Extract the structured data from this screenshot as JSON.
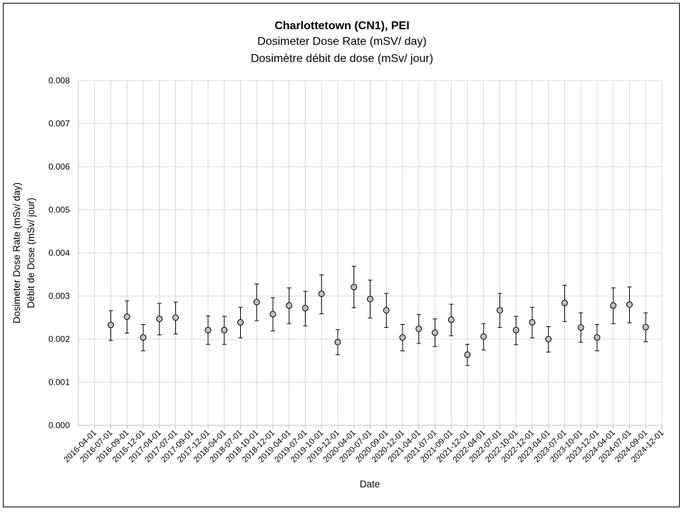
{
  "chart_data": {
    "type": "scatter",
    "title": "Charlottetown (CN1), PEI",
    "subtitle": [
      "Dosimeter Dose Rate (mSV/ day)",
      "Dosimètre débit de dose (mSv/ jour)"
    ],
    "xlabel": "Date",
    "ylabel": [
      "Dosimeter Dose Rate (mSv/ day)",
      "Débit de Dose (mSv/ jour)"
    ],
    "ylim": [
      0,
      0.008
    ],
    "yticks": [
      "0.000",
      "0.001",
      "0.002",
      "0.003",
      "0.004",
      "0.005",
      "0.006",
      "0.007",
      "0.008"
    ],
    "grid": true,
    "x_categories": [
      "2016-04-01",
      "2016-07-01",
      "2016-09-01",
      "2016-12-01",
      "2017-04-01",
      "2017-07-01",
      "2017-09-01",
      "2017-12-01",
      "2018-04-01",
      "2018-07-01",
      "2018-10-01",
      "2018-12-01",
      "2019-04-01",
      "2019-07-01",
      "2019-10-01",
      "2019-12-01",
      "2020-04-01",
      "2020-07-01",
      "2020-09-01",
      "2020-12-01",
      "2021-04-01",
      "2021-07-01",
      "2021-09-01",
      "2021-12-01",
      "2022-04-01",
      "2022-07-01",
      "2022-10-01",
      "2022-12-01",
      "2023-04-01",
      "2023-07-01",
      "2023-10-01",
      "2023-12-01",
      "2024-04-01",
      "2024-07-01",
      "2024-09-01",
      "2024-12-01"
    ],
    "points": [
      {
        "x": "2016-07-01",
        "y": 0.00233,
        "low": 0.00197,
        "high": 0.00266
      },
      {
        "x": "2016-09-01",
        "y": 0.00252,
        "low": 0.00214,
        "high": 0.00289
      },
      {
        "x": "2016-12-01",
        "y": 0.00204,
        "low": 0.00173,
        "high": 0.00234
      },
      {
        "x": "2017-04-01",
        "y": 0.00247,
        "low": 0.0021,
        "high": 0.00283
      },
      {
        "x": "2017-07-01",
        "y": 0.0025,
        "low": 0.00212,
        "high": 0.00286
      },
      {
        "x": "2017-12-01",
        "y": 0.00221,
        "low": 0.00188,
        "high": 0.00254
      },
      {
        "x": "2018-04-01",
        "y": 0.00221,
        "low": 0.00188,
        "high": 0.00253
      },
      {
        "x": "2018-07-01",
        "y": 0.00239,
        "low": 0.00203,
        "high": 0.00274
      },
      {
        "x": "2018-10-01",
        "y": 0.00286,
        "low": 0.00243,
        "high": 0.00328
      },
      {
        "x": "2018-12-01",
        "y": 0.00258,
        "low": 0.00219,
        "high": 0.00296
      },
      {
        "x": "2019-04-01",
        "y": 0.00278,
        "low": 0.00236,
        "high": 0.00319
      },
      {
        "x": "2019-07-01",
        "y": 0.00272,
        "low": 0.00231,
        "high": 0.00311
      },
      {
        "x": "2019-10-01",
        "y": 0.00305,
        "low": 0.00259,
        "high": 0.00349
      },
      {
        "x": "2019-12-01",
        "y": 0.00193,
        "low": 0.00164,
        "high": 0.00222
      },
      {
        "x": "2020-04-01",
        "y": 0.00321,
        "low": 0.00273,
        "high": 0.00369
      },
      {
        "x": "2020-07-01",
        "y": 0.00293,
        "low": 0.00249,
        "high": 0.00337
      },
      {
        "x": "2020-09-01",
        "y": 0.00267,
        "low": 0.00227,
        "high": 0.00306
      },
      {
        "x": "2020-12-01",
        "y": 0.00204,
        "low": 0.00173,
        "high": 0.00234
      },
      {
        "x": "2021-04-01",
        "y": 0.00224,
        "low": 0.0019,
        "high": 0.00257
      },
      {
        "x": "2021-07-01",
        "y": 0.00215,
        "low": 0.00183,
        "high": 0.00247
      },
      {
        "x": "2021-09-01",
        "y": 0.00245,
        "low": 0.00208,
        "high": 0.00281
      },
      {
        "x": "2021-12-01",
        "y": 0.00164,
        "low": 0.00139,
        "high": 0.00188
      },
      {
        "x": "2022-04-01",
        "y": 0.00206,
        "low": 0.00175,
        "high": 0.00236
      },
      {
        "x": "2022-07-01",
        "y": 0.00267,
        "low": 0.00227,
        "high": 0.00306
      },
      {
        "x": "2022-10-01",
        "y": 0.00221,
        "low": 0.00187,
        "high": 0.00253
      },
      {
        "x": "2022-12-01",
        "y": 0.00239,
        "low": 0.00203,
        "high": 0.00274
      },
      {
        "x": "2023-04-01",
        "y": 0.002,
        "low": 0.0017,
        "high": 0.00229
      },
      {
        "x": "2023-07-01",
        "y": 0.00284,
        "low": 0.00241,
        "high": 0.00325
      },
      {
        "x": "2023-10-01",
        "y": 0.00227,
        "low": 0.00193,
        "high": 0.00261
      },
      {
        "x": "2023-12-01",
        "y": 0.00204,
        "low": 0.00173,
        "high": 0.00234
      },
      {
        "x": "2024-04-01",
        "y": 0.00278,
        "low": 0.00236,
        "high": 0.00319
      },
      {
        "x": "2024-07-01",
        "y": 0.0028,
        "low": 0.00238,
        "high": 0.00321
      },
      {
        "x": "2024-09-01",
        "y": 0.00228,
        "low": 0.00194,
        "high": 0.00261
      }
    ],
    "colors": {
      "marker_fill": "#bfbfbf",
      "marker_stroke": "#000000",
      "grid": "#d9d9d9",
      "axis": "#bfbfbf",
      "error_bar": "#000000"
    }
  }
}
